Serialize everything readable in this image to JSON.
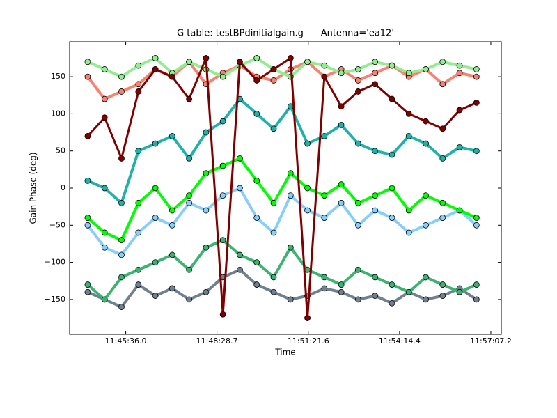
{
  "chart_data": {
    "type": "scatter",
    "title": "G table: testBPdinitialgain.g      Antenna='ea12'",
    "xlabel": "Time",
    "ylabel": "Gain Phase (deg)",
    "x": [
      42264,
      42296,
      42328,
      42360,
      42392,
      42424,
      42456,
      42488,
      42520,
      42552,
      42584,
      42616,
      42648,
      42680,
      42712,
      42744,
      42776,
      42808,
      42840,
      42872,
      42904,
      42936,
      42968,
      43000
    ],
    "xlim": [
      42229.8,
      43047
    ],
    "xticks": [
      {
        "value": 42336,
        "label": "11:45:36.0"
      },
      {
        "value": 42508.7,
        "label": "11:48:28.7"
      },
      {
        "value": 42681.6,
        "label": "11:51:21.6"
      },
      {
        "value": 42854.4,
        "label": "11:54:14.4"
      },
      {
        "value": 43027.2,
        "label": "11:57:07.2"
      }
    ],
    "ylim": [
      -197,
      197
    ],
    "yticks": [
      {
        "value": -150,
        "label": "−150"
      },
      {
        "value": -100,
        "label": "−100"
      },
      {
        "value": -50,
        "label": "−50"
      },
      0,
      50,
      100,
      150
    ],
    "series": [
      {
        "color": "#fa8072",
        "values": [
          150,
          120,
          130,
          140,
          160,
          150,
          170,
          140,
          155,
          165,
          150,
          145,
          160,
          170,
          150,
          160,
          145,
          155,
          165,
          150,
          160,
          140,
          155,
          150
        ]
      },
      {
        "color": "#90ee90",
        "values": [
          170,
          160,
          150,
          165,
          175,
          155,
          170,
          160,
          150,
          165,
          175,
          160,
          150,
          170,
          165,
          155,
          160,
          170,
          165,
          155,
          160,
          170,
          165,
          160
        ]
      },
      {
        "color": "#708090",
        "values": [
          -140,
          -150,
          -160,
          -130,
          -145,
          -135,
          -150,
          -140,
          -120,
          -110,
          -130,
          -140,
          -150,
          -145,
          -135,
          -140,
          -150,
          -145,
          -155,
          -140,
          -150,
          -145,
          -135,
          -150
        ]
      },
      {
        "color": "#3cb371",
        "values": [
          -130,
          -150,
          -120,
          -110,
          -100,
          -90,
          -110,
          -80,
          -70,
          -90,
          -100,
          -120,
          -80,
          -110,
          -120,
          -130,
          -110,
          -120,
          -130,
          -140,
          -120,
          -130,
          -140,
          -130
        ]
      },
      {
        "color": "#87cefa",
        "values": [
          -50,
          -80,
          -90,
          -60,
          -40,
          -50,
          -20,
          -30,
          -10,
          0,
          -40,
          -60,
          -10,
          -30,
          -40,
          -20,
          -50,
          -30,
          -40,
          -60,
          -50,
          -40,
          -30,
          -50
        ]
      },
      {
        "color": "#00ff00",
        "values": [
          -40,
          -60,
          -70,
          -20,
          0,
          -30,
          -10,
          20,
          30,
          40,
          10,
          -20,
          20,
          0,
          -10,
          5,
          -20,
          -10,
          0,
          -30,
          -10,
          -20,
          -30,
          -40
        ]
      },
      {
        "color": "#20b2aa",
        "values": [
          10,
          0,
          -20,
          50,
          60,
          70,
          40,
          75,
          90,
          120,
          100,
          80,
          110,
          60,
          70,
          85,
          60,
          50,
          45,
          70,
          60,
          40,
          55,
          50
        ]
      },
      {
        "color": "#800000",
        "values": [
          70,
          95,
          40,
          130,
          160,
          150,
          120,
          175,
          -170,
          170,
          145,
          160,
          175,
          -175,
          150,
          110,
          130,
          140,
          120,
          100,
          90,
          80,
          105,
          115
        ]
      }
    ]
  }
}
